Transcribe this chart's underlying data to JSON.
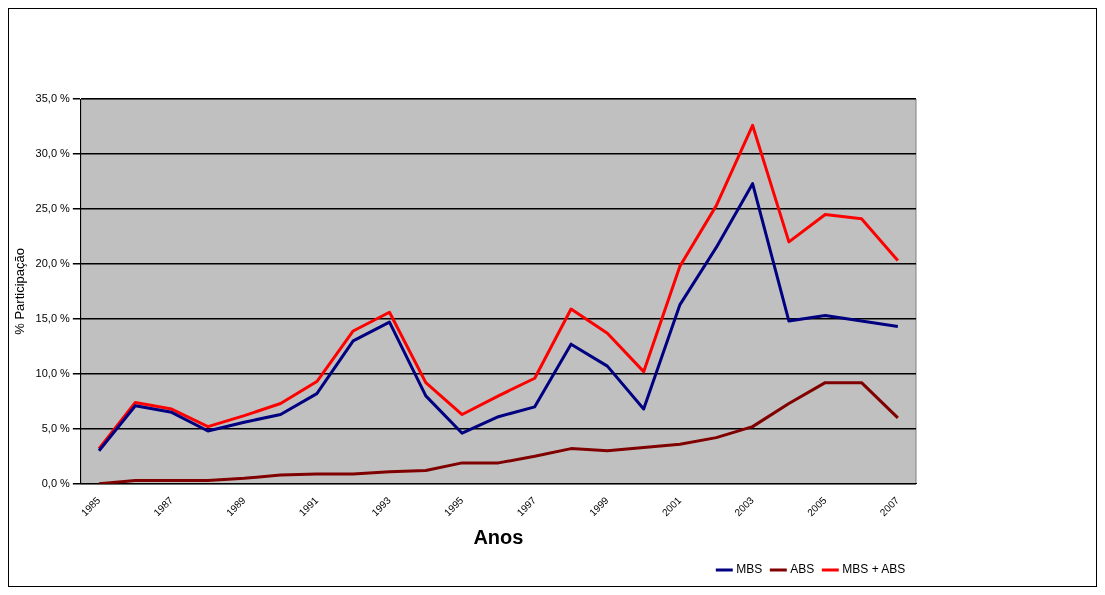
{
  "chart_data": {
    "type": "line",
    "xlabel": "Anos",
    "ylabel": "% Participação",
    "categories": [
      "1985",
      null,
      "1987",
      null,
      "1989",
      null,
      "1991",
      null,
      "1993",
      null,
      "1995",
      null,
      "1997",
      null,
      "1999",
      null,
      "2001",
      null,
      "2003",
      null,
      "2005",
      null,
      "2007"
    ],
    "series": [
      {
        "name": "MBS",
        "color": "#000080",
        "values": [
          3.0,
          7.1,
          6.5,
          4.8,
          5.6,
          6.3,
          8.2,
          13.0,
          14.7,
          8.0,
          4.6,
          6.1,
          7.0,
          12.7,
          10.7,
          6.8,
          16.3,
          21.5,
          27.3,
          14.8,
          15.3,
          14.8,
          14.3
        ]
      },
      {
        "name": "ABS",
        "color": "#800000",
        "values": [
          0,
          0.3,
          0.3,
          0.3,
          0.5,
          0.8,
          0.9,
          0.9,
          1.1,
          1.2,
          1.9,
          1.9,
          2.5,
          3.2,
          3.0,
          3.3,
          3.6,
          4.2,
          5.2,
          7.3,
          9.2,
          9.2,
          6.0
        ]
      },
      {
        "name": "MBS + ABS",
        "color": "#ff0000",
        "values": [
          3.2,
          7.4,
          6.8,
          5.2,
          6.2,
          7.3,
          9.3,
          13.9,
          15.6,
          9.2,
          6.3,
          8.0,
          9.6,
          15.9,
          13.7,
          10.2,
          19.8,
          25.3,
          32.6,
          22.0,
          24.5,
          24.1,
          20.3
        ]
      }
    ],
    "ylim": [
      0,
      35
    ],
    "yticks": [
      {
        "value": 0,
        "label": "0,0 %"
      },
      {
        "value": 5,
        "label": "5,0 %"
      },
      {
        "value": 10,
        "label": "10,0 %"
      },
      {
        "value": 15,
        "label": "15,0 %"
      },
      {
        "value": 20,
        "label": "20,0 %"
      },
      {
        "value": 25,
        "label": "25,0 %"
      },
      {
        "value": 30,
        "label": "30,0 %"
      },
      {
        "value": 35,
        "label": "35,0 %"
      }
    ],
    "grid": "y",
    "legend": "bottom right",
    "marker": "none",
    "line_style": "solid"
  }
}
